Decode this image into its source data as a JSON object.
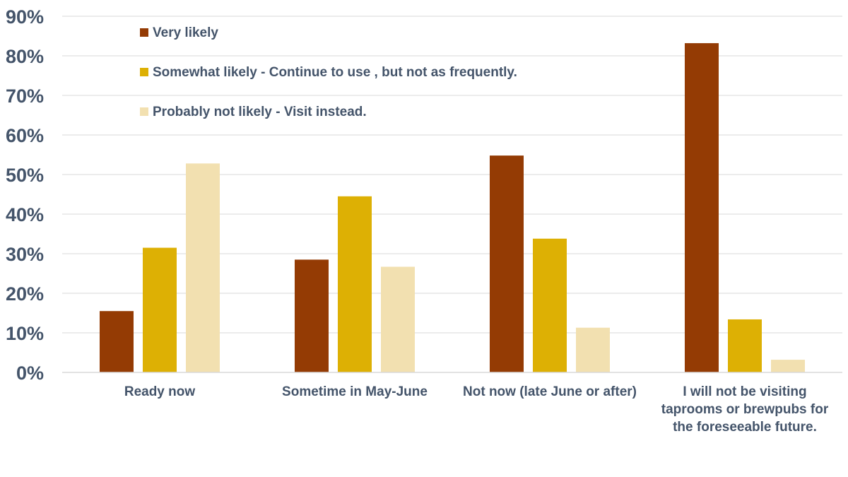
{
  "chart_data": {
    "type": "bar",
    "categories": [
      "Ready now",
      "Sometime in May-June",
      "Not now (late June or after)",
      "I will not be visiting taprooms or brewpubs for the foreseeable future."
    ],
    "series": [
      {
        "name": "Very likely",
        "color": "#943b04",
        "values": [
          15.5,
          28.5,
          54.8,
          83.2
        ]
      },
      {
        "name": "Somewhat likely - Continue to use , but not as frequently.",
        "color": "#ddb004",
        "values": [
          31.5,
          44.5,
          33.8,
          13.4
        ]
      },
      {
        "name": "Probably not likely - Visit instead.",
        "color": "#f2e0b0",
        "values": [
          52.8,
          26.7,
          11.3,
          3.2
        ]
      }
    ],
    "yticks": [
      "0%",
      "10%",
      "20%",
      "30%",
      "40%",
      "50%",
      "60%",
      "70%",
      "80%",
      "90%"
    ],
    "ylim": [
      0,
      90
    ],
    "grid": true,
    "legend_position": "top-left inside plot"
  }
}
